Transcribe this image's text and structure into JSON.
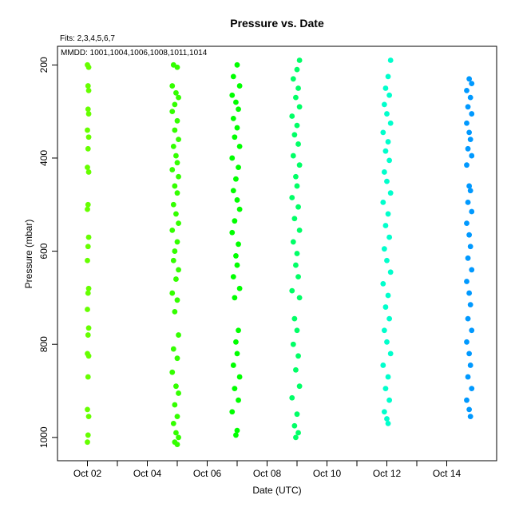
{
  "chart_data": {
    "type": "scatter",
    "title": "Pressure  vs. Date",
    "subtitle_fits": "Fits: 2,3,4,5,6,7",
    "subtitle_mmdd": "MMDD: 1001,1004,1006,1008,1011,1014",
    "xlabel": "Date (UTC)",
    "ylabel": "Pressure (mbar)",
    "xlim": [
      "Oct 01",
      "Oct 15 16:00"
    ],
    "ylim": [
      1050,
      160
    ],
    "y_reversed": true,
    "grid": false,
    "legend": "none",
    "x_ticks": [
      "Oct 02",
      "Oct 04",
      "Oct 06",
      "Oct 08",
      "Oct 10",
      "Oct 12",
      "Oct 14"
    ],
    "y_ticks": [
      200,
      400,
      600,
      800,
      1000
    ],
    "series": [
      {
        "color": "#66ff00",
        "date": "Oct 02",
        "points": [
          {
            "x": "Oct 02 00:00",
            "y": 200
          },
          {
            "x": "Oct 02 01:00",
            "y": 205
          },
          {
            "x": "Oct 02 00:30",
            "y": 245
          },
          {
            "x": "Oct 02 01:00",
            "y": 255
          },
          {
            "x": "Oct 02 00:30",
            "y": 295
          },
          {
            "x": "Oct 02 01:00",
            "y": 305
          },
          {
            "x": "Oct 02 00:00",
            "y": 340
          },
          {
            "x": "Oct 02 01:00",
            "y": 355
          },
          {
            "x": "Oct 02 00:30",
            "y": 380
          },
          {
            "x": "Oct 02 00:00",
            "y": 420
          },
          {
            "x": "Oct 02 01:00",
            "y": 430
          },
          {
            "x": "Oct 02 00:30",
            "y": 500
          },
          {
            "x": "Oct 02 00:00",
            "y": 510
          },
          {
            "x": "Oct 02 01:00",
            "y": 570
          },
          {
            "x": "Oct 02 00:30",
            "y": 590
          },
          {
            "x": "Oct 02 00:00",
            "y": 620
          },
          {
            "x": "Oct 02 01:00",
            "y": 680
          },
          {
            "x": "Oct 02 00:30",
            "y": 690
          },
          {
            "x": "Oct 02 00:00",
            "y": 725
          },
          {
            "x": "Oct 02 01:00",
            "y": 765
          },
          {
            "x": "Oct 02 00:30",
            "y": 780
          },
          {
            "x": "Oct 02 00:00",
            "y": 820
          },
          {
            "x": "Oct 02 01:00",
            "y": 825
          },
          {
            "x": "Oct 02 00:30",
            "y": 870
          },
          {
            "x": "Oct 02 00:00",
            "y": 940
          },
          {
            "x": "Oct 02 01:00",
            "y": 955
          },
          {
            "x": "Oct 02 00:30",
            "y": 995
          },
          {
            "x": "Oct 02 00:00",
            "y": 1010
          }
        ]
      },
      {
        "color": "#33ff00",
        "date": "Oct 05",
        "points": [
          {
            "x": "Oct 04 21:00",
            "y": 200
          },
          {
            "x": "Oct 05 00:00",
            "y": 205
          },
          {
            "x": "Oct 04 20:00",
            "y": 245
          },
          {
            "x": "Oct 04 23:00",
            "y": 260
          },
          {
            "x": "Oct 05 01:00",
            "y": 270
          },
          {
            "x": "Oct 04 22:00",
            "y": 285
          },
          {
            "x": "Oct 04 20:00",
            "y": 300
          },
          {
            "x": "Oct 05 00:00",
            "y": 320
          },
          {
            "x": "Oct 04 22:00",
            "y": 340
          },
          {
            "x": "Oct 05 01:00",
            "y": 360
          },
          {
            "x": "Oct 04 21:00",
            "y": 375
          },
          {
            "x": "Oct 04 23:00",
            "y": 395
          },
          {
            "x": "Oct 05 00:00",
            "y": 410
          },
          {
            "x": "Oct 04 20:00",
            "y": 425
          },
          {
            "x": "Oct 05 01:00",
            "y": 440
          },
          {
            "x": "Oct 04 22:00",
            "y": 460
          },
          {
            "x": "Oct 05 00:00",
            "y": 475
          },
          {
            "x": "Oct 04 21:00",
            "y": 500
          },
          {
            "x": "Oct 04 23:00",
            "y": 520
          },
          {
            "x": "Oct 05 01:00",
            "y": 540
          },
          {
            "x": "Oct 04 20:00",
            "y": 555
          },
          {
            "x": "Oct 05 00:00",
            "y": 580
          },
          {
            "x": "Oct 04 22:00",
            "y": 600
          },
          {
            "x": "Oct 04 21:00",
            "y": 620
          },
          {
            "x": "Oct 05 01:00",
            "y": 640
          },
          {
            "x": "Oct 04 23:00",
            "y": 660
          },
          {
            "x": "Oct 04 20:00",
            "y": 690
          },
          {
            "x": "Oct 05 00:00",
            "y": 705
          },
          {
            "x": "Oct 04 22:00",
            "y": 730
          },
          {
            "x": "Oct 05 01:00",
            "y": 780
          },
          {
            "x": "Oct 04 21:00",
            "y": 810
          },
          {
            "x": "Oct 05 00:00",
            "y": 830
          },
          {
            "x": "Oct 04 20:00",
            "y": 860
          },
          {
            "x": "Oct 04 23:00",
            "y": 890
          },
          {
            "x": "Oct 05 01:00",
            "y": 905
          },
          {
            "x": "Oct 04 22:00",
            "y": 930
          },
          {
            "x": "Oct 05 00:00",
            "y": 955
          },
          {
            "x": "Oct 04 21:00",
            "y": 970
          },
          {
            "x": "Oct 04 23:00",
            "y": 990
          },
          {
            "x": "Oct 05 01:00",
            "y": 1000
          },
          {
            "x": "Oct 04 22:00",
            "y": 1010
          },
          {
            "x": "Oct 05 00:00",
            "y": 1015
          }
        ]
      },
      {
        "color": "#00ff00",
        "date": "Oct 07",
        "points": [
          {
            "x": "Oct 07 00:00",
            "y": 200
          },
          {
            "x": "Oct 06 21:00",
            "y": 225
          },
          {
            "x": "Oct 07 02:00",
            "y": 245
          },
          {
            "x": "Oct 06 20:00",
            "y": 265
          },
          {
            "x": "Oct 06 23:00",
            "y": 280
          },
          {
            "x": "Oct 07 01:00",
            "y": 295
          },
          {
            "x": "Oct 06 21:00",
            "y": 315
          },
          {
            "x": "Oct 07 00:00",
            "y": 335
          },
          {
            "x": "Oct 06 22:00",
            "y": 355
          },
          {
            "x": "Oct 07 02:00",
            "y": 375
          },
          {
            "x": "Oct 06 20:00",
            "y": 400
          },
          {
            "x": "Oct 07 01:00",
            "y": 420
          },
          {
            "x": "Oct 06 23:00",
            "y": 445
          },
          {
            "x": "Oct 06 21:00",
            "y": 470
          },
          {
            "x": "Oct 07 00:00",
            "y": 490
          },
          {
            "x": "Oct 07 02:00",
            "y": 510
          },
          {
            "x": "Oct 06 22:00",
            "y": 535
          },
          {
            "x": "Oct 06 20:00",
            "y": 560
          },
          {
            "x": "Oct 07 01:00",
            "y": 585
          },
          {
            "x": "Oct 06 23:00",
            "y": 610
          },
          {
            "x": "Oct 07 00:00",
            "y": 630
          },
          {
            "x": "Oct 06 21:00",
            "y": 655
          },
          {
            "x": "Oct 07 02:00",
            "y": 680
          },
          {
            "x": "Oct 06 22:00",
            "y": 700
          },
          {
            "x": "Oct 07 01:00",
            "y": 770
          },
          {
            "x": "Oct 06 23:00",
            "y": 795
          },
          {
            "x": "Oct 07 00:00",
            "y": 820
          },
          {
            "x": "Oct 06 21:00",
            "y": 845
          },
          {
            "x": "Oct 07 02:00",
            "y": 870
          },
          {
            "x": "Oct 06 22:00",
            "y": 895
          },
          {
            "x": "Oct 07 01:00",
            "y": 920
          },
          {
            "x": "Oct 06 20:00",
            "y": 945
          },
          {
            "x": "Oct 07 00:00",
            "y": 985
          },
          {
            "x": "Oct 06 23:00",
            "y": 995
          }
        ]
      },
      {
        "color": "#00ff66",
        "date": "Oct 09",
        "points": [
          {
            "x": "Oct 09 02:00",
            "y": 190
          },
          {
            "x": "Oct 09 00:00",
            "y": 210
          },
          {
            "x": "Oct 08 21:00",
            "y": 230
          },
          {
            "x": "Oct 09 01:00",
            "y": 250
          },
          {
            "x": "Oct 08 23:00",
            "y": 270
          },
          {
            "x": "Oct 09 02:00",
            "y": 290
          },
          {
            "x": "Oct 08 20:00",
            "y": 310
          },
          {
            "x": "Oct 09 00:00",
            "y": 330
          },
          {
            "x": "Oct 08 22:00",
            "y": 350
          },
          {
            "x": "Oct 09 01:00",
            "y": 370
          },
          {
            "x": "Oct 08 21:00",
            "y": 395
          },
          {
            "x": "Oct 09 02:00",
            "y": 415
          },
          {
            "x": "Oct 08 23:00",
            "y": 440
          },
          {
            "x": "Oct 09 00:00",
            "y": 460
          },
          {
            "x": "Oct 08 20:00",
            "y": 485
          },
          {
            "x": "Oct 09 01:00",
            "y": 505
          },
          {
            "x": "Oct 08 22:00",
            "y": 530
          },
          {
            "x": "Oct 09 02:00",
            "y": 555
          },
          {
            "x": "Oct 08 21:00",
            "y": 580
          },
          {
            "x": "Oct 09 00:00",
            "y": 605
          },
          {
            "x": "Oct 08 23:00",
            "y": 630
          },
          {
            "x": "Oct 09 01:00",
            "y": 655
          },
          {
            "x": "Oct 08 20:00",
            "y": 685
          },
          {
            "x": "Oct 09 02:00",
            "y": 700
          },
          {
            "x": "Oct 08 22:00",
            "y": 745
          },
          {
            "x": "Oct 09 00:00",
            "y": 770
          },
          {
            "x": "Oct 08 21:00",
            "y": 800
          },
          {
            "x": "Oct 09 01:00",
            "y": 825
          },
          {
            "x": "Oct 08 23:00",
            "y": 855
          },
          {
            "x": "Oct 09 02:00",
            "y": 890
          },
          {
            "x": "Oct 08 20:00",
            "y": 915
          },
          {
            "x": "Oct 09 00:00",
            "y": 950
          },
          {
            "x": "Oct 08 22:00",
            "y": 975
          },
          {
            "x": "Oct 09 01:00",
            "y": 990
          },
          {
            "x": "Oct 08 23:00",
            "y": 1000
          }
        ]
      },
      {
        "color": "#00ffcc",
        "date": "Oct 12",
        "points": [
          {
            "x": "Oct 12 03:00",
            "y": 190
          },
          {
            "x": "Oct 12 01:00",
            "y": 225
          },
          {
            "x": "Oct 11 23:00",
            "y": 250
          },
          {
            "x": "Oct 12 02:00",
            "y": 265
          },
          {
            "x": "Oct 11 22:00",
            "y": 285
          },
          {
            "x": "Oct 12 00:00",
            "y": 305
          },
          {
            "x": "Oct 12 03:00",
            "y": 325
          },
          {
            "x": "Oct 11 21:00",
            "y": 345
          },
          {
            "x": "Oct 12 01:00",
            "y": 365
          },
          {
            "x": "Oct 11 23:00",
            "y": 385
          },
          {
            "x": "Oct 12 02:00",
            "y": 405
          },
          {
            "x": "Oct 11 22:00",
            "y": 430
          },
          {
            "x": "Oct 12 00:00",
            "y": 450
          },
          {
            "x": "Oct 12 03:00",
            "y": 475
          },
          {
            "x": "Oct 11 21:00",
            "y": 495
          },
          {
            "x": "Oct 12 01:00",
            "y": 520
          },
          {
            "x": "Oct 11 23:00",
            "y": 545
          },
          {
            "x": "Oct 12 02:00",
            "y": 570
          },
          {
            "x": "Oct 11 22:00",
            "y": 595
          },
          {
            "x": "Oct 12 00:00",
            "y": 620
          },
          {
            "x": "Oct 12 03:00",
            "y": 645
          },
          {
            "x": "Oct 11 21:00",
            "y": 670
          },
          {
            "x": "Oct 12 01:00",
            "y": 695
          },
          {
            "x": "Oct 11 23:00",
            "y": 720
          },
          {
            "x": "Oct 12 02:00",
            "y": 745
          },
          {
            "x": "Oct 11 22:00",
            "y": 770
          },
          {
            "x": "Oct 12 00:00",
            "y": 795
          },
          {
            "x": "Oct 12 03:00",
            "y": 820
          },
          {
            "x": "Oct 11 21:00",
            "y": 845
          },
          {
            "x": "Oct 12 01:00",
            "y": 870
          },
          {
            "x": "Oct 11 23:00",
            "y": 895
          },
          {
            "x": "Oct 12 02:00",
            "y": 920
          },
          {
            "x": "Oct 11 22:00",
            "y": 945
          },
          {
            "x": "Oct 12 00:00",
            "y": 960
          },
          {
            "x": "Oct 12 01:00",
            "y": 970
          }
        ]
      },
      {
        "color": "#0099ff",
        "date": "Oct 15",
        "points": [
          {
            "x": "Oct 14 18:00",
            "y": 230
          },
          {
            "x": "Oct 14 20:00",
            "y": 240
          },
          {
            "x": "Oct 14 16:00",
            "y": 255
          },
          {
            "x": "Oct 14 19:00",
            "y": 270
          },
          {
            "x": "Oct 14 17:00",
            "y": 290
          },
          {
            "x": "Oct 14 20:00",
            "y": 305
          },
          {
            "x": "Oct 14 16:00",
            "y": 325
          },
          {
            "x": "Oct 14 18:00",
            "y": 345
          },
          {
            "x": "Oct 14 19:00",
            "y": 360
          },
          {
            "x": "Oct 14 17:00",
            "y": 380
          },
          {
            "x": "Oct 14 20:00",
            "y": 395
          },
          {
            "x": "Oct 14 16:00",
            "y": 415
          },
          {
            "x": "Oct 14 18:00",
            "y": 460
          },
          {
            "x": "Oct 14 19:00",
            "y": 470
          },
          {
            "x": "Oct 14 17:00",
            "y": 495
          },
          {
            "x": "Oct 14 20:00",
            "y": 515
          },
          {
            "x": "Oct 14 16:00",
            "y": 540
          },
          {
            "x": "Oct 14 18:00",
            "y": 565
          },
          {
            "x": "Oct 14 19:00",
            "y": 590
          },
          {
            "x": "Oct 14 17:00",
            "y": 615
          },
          {
            "x": "Oct 14 20:00",
            "y": 640
          },
          {
            "x": "Oct 14 16:00",
            "y": 665
          },
          {
            "x": "Oct 14 18:00",
            "y": 690
          },
          {
            "x": "Oct 14 19:00",
            "y": 715
          },
          {
            "x": "Oct 14 17:00",
            "y": 745
          },
          {
            "x": "Oct 14 20:00",
            "y": 770
          },
          {
            "x": "Oct 14 16:00",
            "y": 795
          },
          {
            "x": "Oct 14 18:00",
            "y": 820
          },
          {
            "x": "Oct 14 19:00",
            "y": 845
          },
          {
            "x": "Oct 14 17:00",
            "y": 870
          },
          {
            "x": "Oct 14 20:00",
            "y": 895
          },
          {
            "x": "Oct 14 16:00",
            "y": 920
          },
          {
            "x": "Oct 14 18:00",
            "y": 940
          },
          {
            "x": "Oct 14 19:00",
            "y": 955
          }
        ]
      }
    ]
  }
}
